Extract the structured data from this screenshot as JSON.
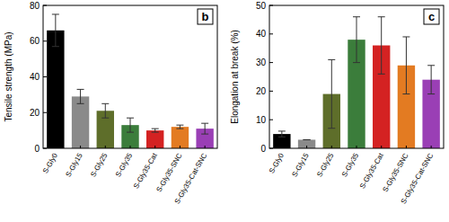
{
  "chart_data": [
    {
      "type": "bar",
      "annotation": "b",
      "y_label": "Tensile strength (MPa)",
      "categories": [
        "S-Gly0",
        "S-Gly15",
        "S-Gly25",
        "S-Gly35",
        "S-Gly35-Cat",
        "S-Gly35-SNC",
        "S-Gly35-Cat-SNC"
      ],
      "values": [
        66,
        29,
        21,
        13,
        10,
        12,
        11
      ],
      "errors": [
        9,
        4,
        4,
        4,
        1,
        1,
        3
      ],
      "colors": [
        "#000000",
        "#8a8a8a",
        "#5e6e2a",
        "#3b7d3b",
        "#d42222",
        "#e37b22",
        "#9a3fb5"
      ],
      "ylim": [
        0,
        80
      ],
      "yticks": [
        0,
        20,
        40,
        60,
        80
      ],
      "grid": false
    },
    {
      "type": "bar",
      "annotation": "c",
      "y_label": "Elongation at break (%)",
      "categories": [
        "S-Gly0",
        "S-Gly15",
        "S-Gly25",
        "S-Gly35",
        "S-Gly35-Cat",
        "S-Gly35-SNC",
        "S-Gly35-Cat-SNC"
      ],
      "values": [
        5,
        3,
        19,
        38,
        36,
        29,
        24
      ],
      "errors": [
        1,
        0,
        12,
        8,
        10,
        10,
        5
      ],
      "colors": [
        "#000000",
        "#8a8a8a",
        "#5e6e2a",
        "#3b7d3b",
        "#d42222",
        "#e37b22",
        "#9a3fb5"
      ],
      "ylim": [
        0,
        50
      ],
      "yticks": [
        0,
        10,
        20,
        30,
        40,
        50
      ],
      "grid": false
    }
  ]
}
